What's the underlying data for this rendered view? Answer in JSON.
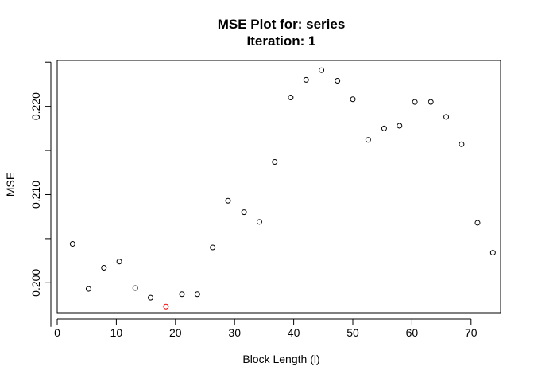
{
  "chart_data": {
    "type": "scatter",
    "title": "MSE Plot for: series",
    "subtitle": "Iteration: 1",
    "xlabel": "Block Length (l)",
    "ylabel": "MSE",
    "xlim": [
      0,
      75
    ],
    "ylim": [
      0.1966,
      0.2252
    ],
    "xticks": [
      0,
      10,
      20,
      30,
      40,
      50,
      60,
      70
    ],
    "xtick_labels": [
      "0",
      "10",
      "20",
      "30",
      "40",
      "50",
      "60",
      "70"
    ],
    "yticks": [
      0.2,
      0.21,
      0.22
    ],
    "ytick_labels": [
      "0.200",
      "0.210",
      "0.220"
    ],
    "grid": false,
    "point_color": "#000000",
    "highlight_color": "#ff0000",
    "points": [
      {
        "x": 2.6,
        "y": 0.2044
      },
      {
        "x": 5.3,
        "y": 0.1993
      },
      {
        "x": 7.9,
        "y": 0.2017
      },
      {
        "x": 10.5,
        "y": 0.2024
      },
      {
        "x": 13.2,
        "y": 0.1994
      },
      {
        "x": 15.8,
        "y": 0.1983
      },
      {
        "x": 18.4,
        "y": 0.1973,
        "highlight": true
      },
      {
        "x": 21.1,
        "y": 0.1987
      },
      {
        "x": 23.7,
        "y": 0.1987
      },
      {
        "x": 26.3,
        "y": 0.204
      },
      {
        "x": 28.9,
        "y": 0.2093
      },
      {
        "x": 31.6,
        "y": 0.208
      },
      {
        "x": 34.2,
        "y": 0.2069
      },
      {
        "x": 36.8,
        "y": 0.2137
      },
      {
        "x": 39.5,
        "y": 0.221
      },
      {
        "x": 42.1,
        "y": 0.223
      },
      {
        "x": 44.7,
        "y": 0.2241
      },
      {
        "x": 47.4,
        "y": 0.2229
      },
      {
        "x": 50.0,
        "y": 0.2208
      },
      {
        "x": 52.6,
        "y": 0.2162
      },
      {
        "x": 55.3,
        "y": 0.2175
      },
      {
        "x": 57.9,
        "y": 0.2178
      },
      {
        "x": 60.5,
        "y": 0.2205
      },
      {
        "x": 63.2,
        "y": 0.2205
      },
      {
        "x": 65.8,
        "y": 0.2188
      },
      {
        "x": 68.4,
        "y": 0.2157
      },
      {
        "x": 71.1,
        "y": 0.2068
      },
      {
        "x": 73.7,
        "y": 0.2034
      }
    ]
  }
}
